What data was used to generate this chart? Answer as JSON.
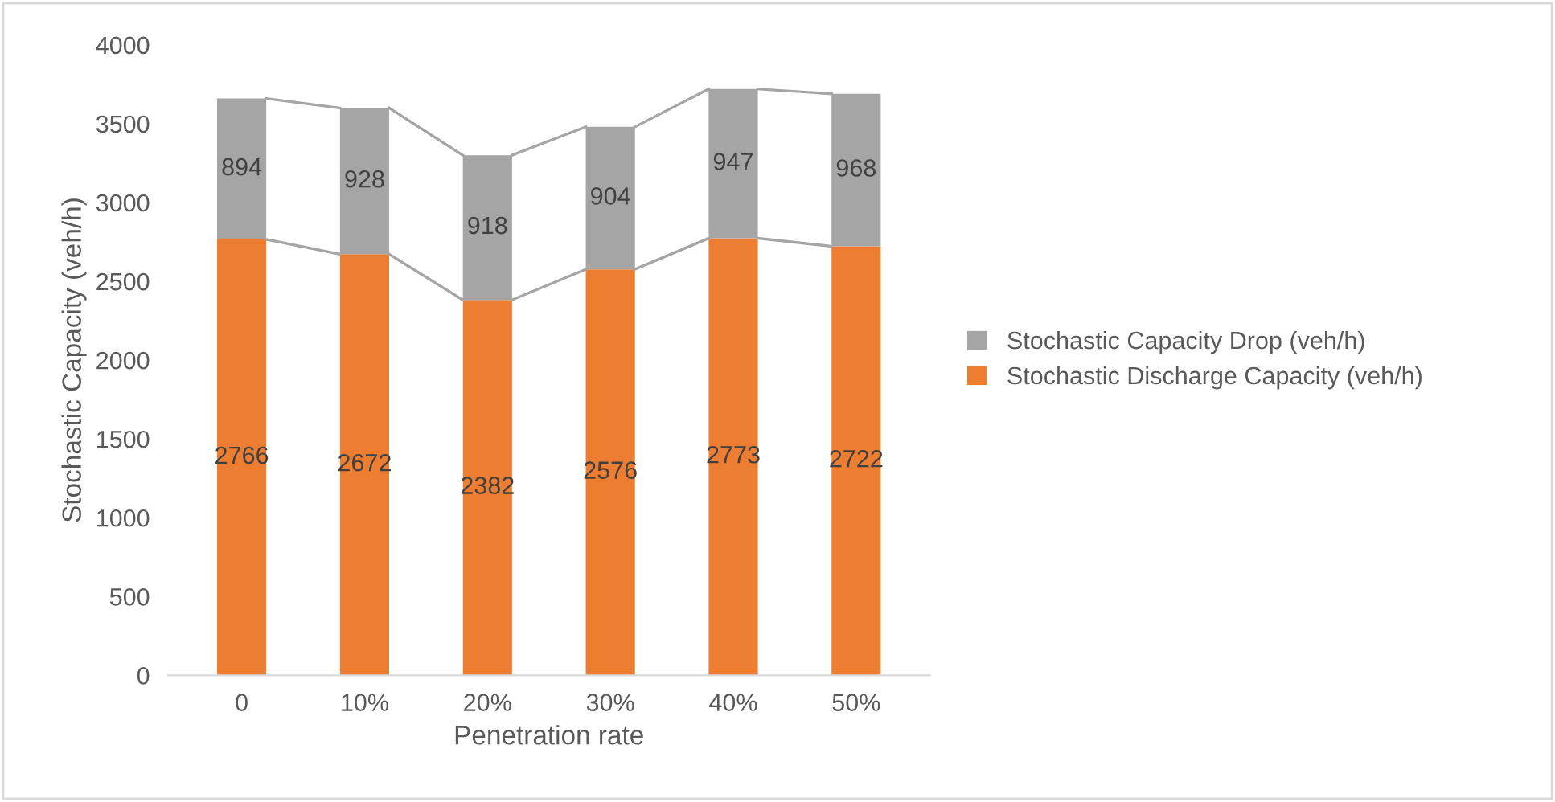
{
  "chart_data": {
    "type": "bar",
    "stacked": true,
    "xlabel": "Penetration rate",
    "ylabel": "Stochastic Capacity (veh/h)",
    "categories": [
      "0",
      "10%",
      "20%",
      "30%",
      "40%",
      "50%"
    ],
    "series": [
      {
        "name": "Stochastic Discharge Capacity (veh/h)",
        "color": "#ed7d31",
        "values": [
          2766,
          2672,
          2382,
          2576,
          2773,
          2722
        ]
      },
      {
        "name": "Stochastic Capacity Drop (veh/h)",
        "color": "#a5a5a5",
        "values": [
          894,
          928,
          918,
          904,
          947,
          968
        ]
      }
    ],
    "ylim": [
      0,
      4000
    ],
    "yticks": [
      0,
      500,
      1000,
      1500,
      2000,
      2500,
      3000,
      3500,
      4000
    ],
    "data_labels": true,
    "legend": "right",
    "grid": false
  }
}
